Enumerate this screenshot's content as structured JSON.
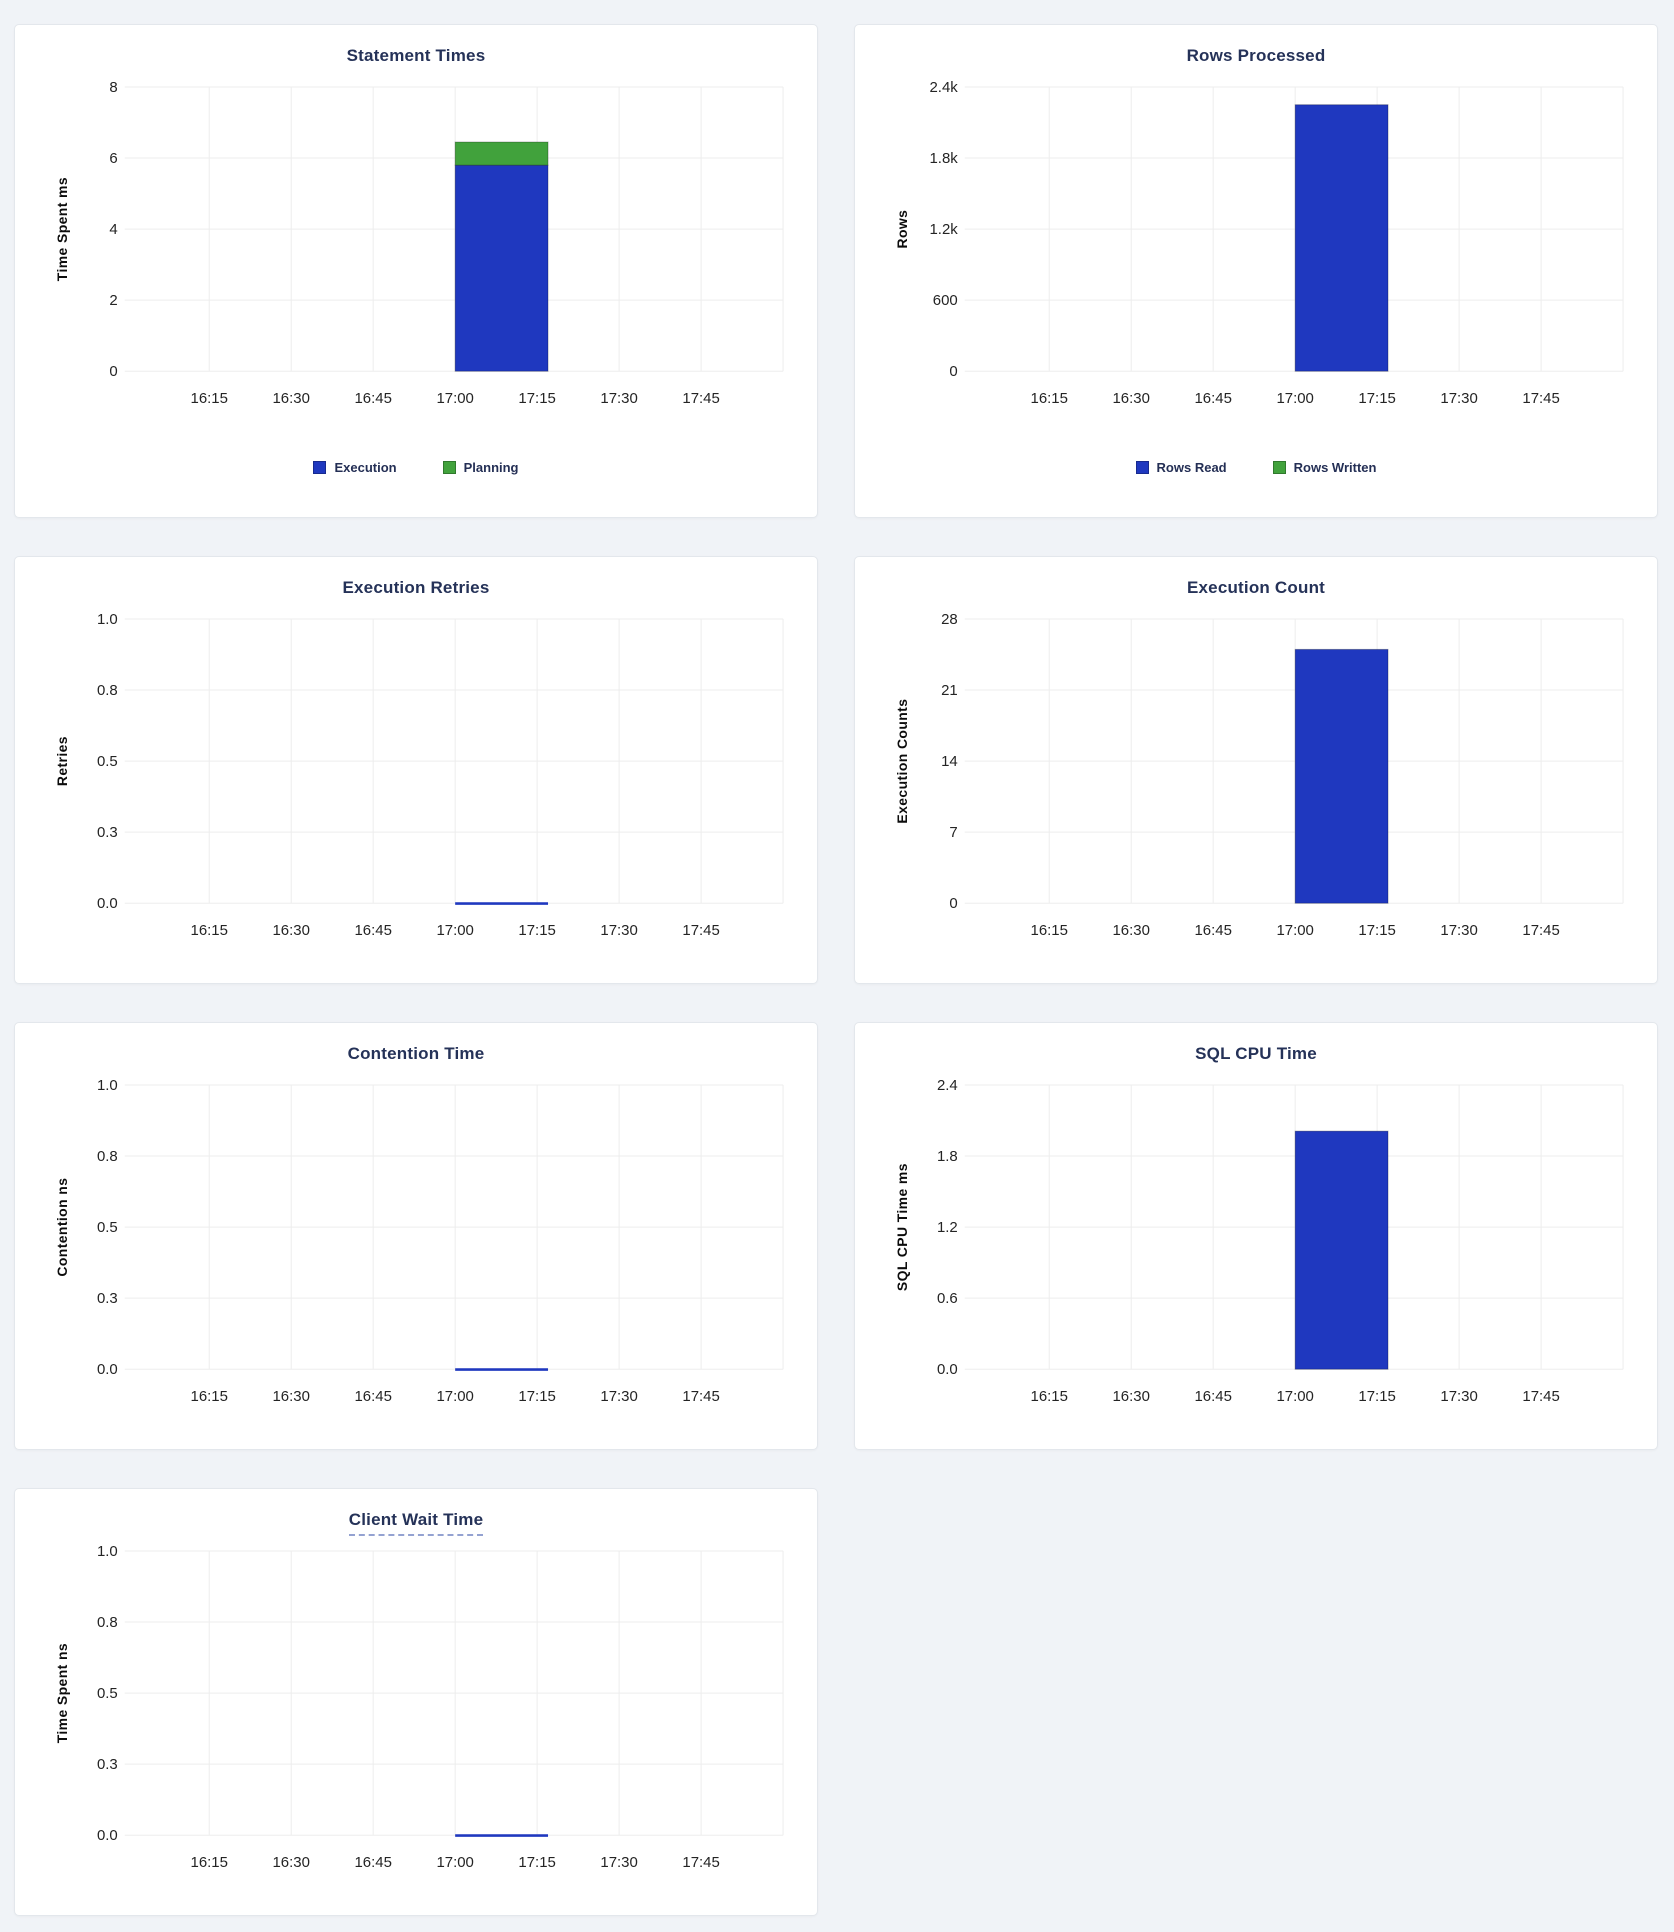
{
  "page": {
    "background": "#f0f3f7",
    "card_background": "#ffffff",
    "card_border": "#e3e7ec"
  },
  "colors": {
    "title_text": "#253258",
    "tick_text": "#242424",
    "axis_label_text": "#0c0c0c",
    "legend_text": "#242f55",
    "grid_line": "#ededed",
    "series_blue": "#1f38bf",
    "series_green": "#41a23c"
  },
  "chart_data": [
    {
      "type": "bar",
      "title": "Statement Times",
      "title_underlined": false,
      "xlabel": "",
      "ylabel": "Time Spent ms",
      "y_tick_labels": [
        "0",
        "2",
        "4",
        "6",
        "8"
      ],
      "y_max": 8,
      "ylim": [
        0,
        8
      ],
      "x_ticks": [
        "16:15",
        "16:30",
        "16:45",
        "17:00",
        "17:15",
        "17:30",
        "17:45"
      ],
      "x_domain": [
        "16:01",
        "18:00"
      ],
      "bar_x": [
        "17:00",
        "17:17"
      ],
      "stacked": true,
      "grid": true,
      "legend_position": "bottom",
      "legend": [
        "Execution",
        "Planning"
      ],
      "series": [
        {
          "name": "Execution",
          "value": 5.8,
          "color": "#1f38bf"
        },
        {
          "name": "Planning",
          "value": 0.65,
          "color": "#41a23c"
        }
      ]
    },
    {
      "type": "bar",
      "title": "Rows Processed",
      "title_underlined": false,
      "xlabel": "",
      "ylabel": "Rows",
      "y_tick_labels": [
        "0",
        "600",
        "1.2k",
        "1.8k",
        "2.4k"
      ],
      "y_max": 2400,
      "ylim": [
        0,
        2400
      ],
      "x_ticks": [
        "16:15",
        "16:30",
        "16:45",
        "17:00",
        "17:15",
        "17:30",
        "17:45"
      ],
      "x_domain": [
        "16:01",
        "18:00"
      ],
      "bar_x": [
        "17:00",
        "17:17"
      ],
      "stacked": true,
      "grid": true,
      "legend_position": "bottom",
      "legend": [
        "Rows Read",
        "Rows Written"
      ],
      "series": [
        {
          "name": "Rows Read",
          "value": 2250,
          "color": "#1f38bf"
        },
        {
          "name": "Rows Written",
          "value": 0,
          "color": "#41a23c"
        }
      ]
    },
    {
      "type": "bar",
      "title": "Execution Retries",
      "title_underlined": false,
      "xlabel": "",
      "ylabel": "Retries",
      "y_tick_labels": [
        "0.0",
        "0.3",
        "0.5",
        "0.8",
        "1.0"
      ],
      "y_max": 1,
      "ylim": [
        0,
        1
      ],
      "x_ticks": [
        "16:15",
        "16:30",
        "16:45",
        "17:00",
        "17:15",
        "17:30",
        "17:45"
      ],
      "x_domain": [
        "16:01",
        "18:00"
      ],
      "bar_x": [
        "17:00",
        "17:17"
      ],
      "stacked": false,
      "grid": true,
      "legend_position": "none",
      "legend": null,
      "series": [
        {
          "name": "Retries",
          "value": 0,
          "color": "#1f38bf"
        }
      ]
    },
    {
      "type": "bar",
      "title": "Execution Count",
      "title_underlined": false,
      "xlabel": "",
      "ylabel": "Execution Counts",
      "y_tick_labels": [
        "0",
        "7",
        "14",
        "21",
        "28"
      ],
      "y_max": 28,
      "ylim": [
        0,
        28
      ],
      "x_ticks": [
        "16:15",
        "16:30",
        "16:45",
        "17:00",
        "17:15",
        "17:30",
        "17:45"
      ],
      "x_domain": [
        "16:01",
        "18:00"
      ],
      "bar_x": [
        "17:00",
        "17:17"
      ],
      "stacked": false,
      "grid": true,
      "legend_position": "none",
      "legend": null,
      "series": [
        {
          "name": "Execution Count",
          "value": 25,
          "color": "#1f38bf"
        }
      ]
    },
    {
      "type": "bar",
      "title": "Contention Time",
      "title_underlined": false,
      "xlabel": "",
      "ylabel": "Contention ns",
      "y_tick_labels": [
        "0.0",
        "0.3",
        "0.5",
        "0.8",
        "1.0"
      ],
      "y_max": 1,
      "ylim": [
        0,
        1
      ],
      "x_ticks": [
        "16:15",
        "16:30",
        "16:45",
        "17:00",
        "17:15",
        "17:30",
        "17:45"
      ],
      "x_domain": [
        "16:01",
        "18:00"
      ],
      "bar_x": [
        "17:00",
        "17:17"
      ],
      "stacked": false,
      "grid": true,
      "legend_position": "none",
      "legend": null,
      "series": [
        {
          "name": "Contention",
          "value": 0,
          "color": "#1f38bf"
        }
      ]
    },
    {
      "type": "bar",
      "title": "SQL CPU Time",
      "title_underlined": false,
      "xlabel": "",
      "ylabel": "SQL CPU Time ms",
      "y_tick_labels": [
        "0.0",
        "0.6",
        "1.2",
        "1.8",
        "2.4"
      ],
      "y_max": 2.4,
      "ylim": [
        0,
        2.4
      ],
      "x_ticks": [
        "16:15",
        "16:30",
        "16:45",
        "17:00",
        "17:15",
        "17:30",
        "17:45"
      ],
      "x_domain": [
        "16:01",
        "18:00"
      ],
      "bar_x": [
        "17:00",
        "17:17"
      ],
      "stacked": false,
      "grid": true,
      "legend_position": "none",
      "legend": null,
      "series": [
        {
          "name": "SQL CPU Time",
          "value": 2.01,
          "color": "#1f38bf"
        }
      ]
    },
    {
      "type": "bar",
      "title": "Client Wait Time",
      "title_underlined": true,
      "xlabel": "",
      "ylabel": "Time Spent ns",
      "y_tick_labels": [
        "0.0",
        "0.3",
        "0.5",
        "0.8",
        "1.0"
      ],
      "y_max": 1,
      "ylim": [
        0,
        1
      ],
      "x_ticks": [
        "16:15",
        "16:30",
        "16:45",
        "17:00",
        "17:15",
        "17:30",
        "17:45"
      ],
      "x_domain": [
        "16:01",
        "18:00"
      ],
      "bar_x": [
        "17:00",
        "17:17"
      ],
      "stacked": false,
      "grid": true,
      "legend_position": "none",
      "legend": null,
      "series": [
        {
          "name": "Client Wait",
          "value": 0,
          "color": "#1f38bf"
        }
      ]
    }
  ]
}
